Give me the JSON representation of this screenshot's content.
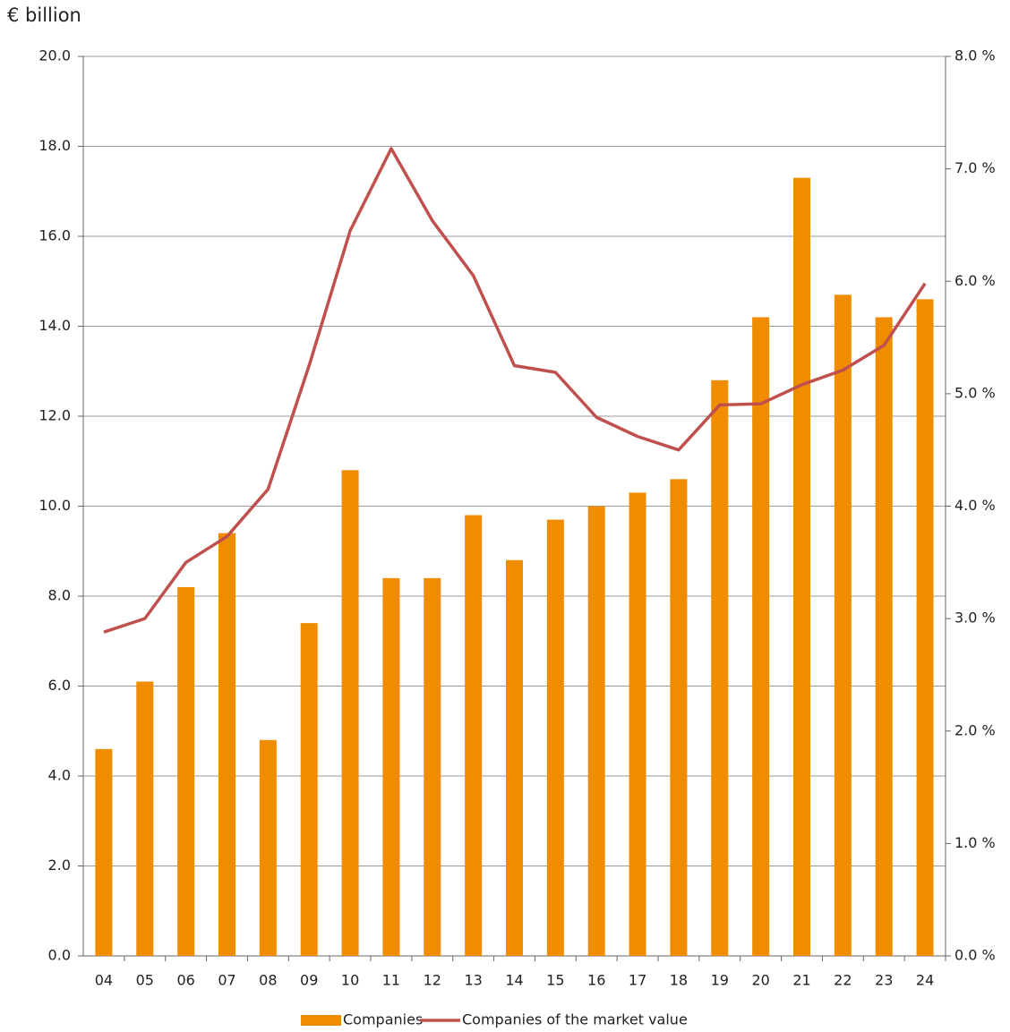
{
  "chart_data": {
    "type": "bar-line",
    "y_label": "€ billion",
    "categories": [
      "04",
      "05",
      "06",
      "07",
      "08",
      "09",
      "10",
      "11",
      "12",
      "13",
      "14",
      "15",
      "16",
      "17",
      "18",
      "19",
      "20",
      "21",
      "22",
      "23",
      "24"
    ],
    "series": [
      {
        "name": "Companies",
        "type": "bar",
        "color": "#ef8c00",
        "values": [
          4.6,
          6.1,
          8.2,
          9.4,
          4.8,
          7.4,
          10.8,
          8.4,
          8.4,
          9.8,
          8.8,
          9.7,
          10.0,
          10.3,
          10.6,
          12.8,
          14.2,
          17.3,
          14.7,
          14.2,
          14.6
        ]
      },
      {
        "name": "Companies of the market value",
        "type": "line",
        "axis": "y2",
        "color": "#c0504d",
        "values": [
          2.88,
          3.0,
          3.5,
          3.73,
          4.15,
          5.25,
          6.45,
          7.18,
          6.54,
          6.05,
          5.25,
          5.19,
          4.79,
          4.62,
          4.5,
          4.9,
          4.91,
          5.08,
          5.21,
          5.43,
          5.98
        ]
      }
    ],
    "ylim": [
      0,
      20
    ],
    "yticks": [
      {
        "value": 0,
        "label": "0.0"
      },
      {
        "value": 2,
        "label": "2.0"
      },
      {
        "value": 4,
        "label": "4.0"
      },
      {
        "value": 6,
        "label": "6.0"
      },
      {
        "value": 8,
        "label": "8.0"
      },
      {
        "value": 10,
        "label": "10.0"
      },
      {
        "value": 12,
        "label": "12.0"
      },
      {
        "value": 14,
        "label": "14.0"
      },
      {
        "value": 16,
        "label": "16.0"
      },
      {
        "value": 18,
        "label": "18.0"
      },
      {
        "value": 20,
        "label": "20.0"
      }
    ],
    "y2lim": [
      0,
      8
    ],
    "y2ticks": [
      {
        "value": 0,
        "label": "0.0 %"
      },
      {
        "value": 1,
        "label": "1.0 %"
      },
      {
        "value": 2,
        "label": "2.0 %"
      },
      {
        "value": 3,
        "label": "3.0 %"
      },
      {
        "value": 4,
        "label": "4.0 %"
      },
      {
        "value": 5,
        "label": "5.0 %"
      },
      {
        "value": 6,
        "label": "6.0 %"
      },
      {
        "value": 7,
        "label": "7.0 %"
      },
      {
        "value": 8,
        "label": "8.0 %"
      }
    ],
    "grid": true,
    "legend": "bottom"
  }
}
